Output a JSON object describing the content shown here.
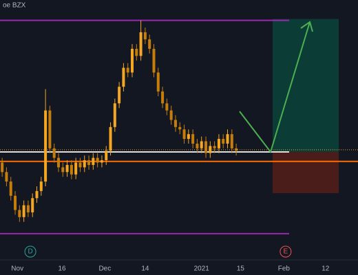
{
  "chart_data": {
    "type": "candlestick",
    "title": "oe BZX",
    "open": [
      40,
      36,
      32,
      26,
      20,
      17,
      22,
      19,
      25,
      28,
      32,
      62,
      46,
      42,
      38,
      36,
      39,
      35,
      40,
      38,
      41,
      39,
      42,
      40,
      41,
      45,
      55,
      65,
      72,
      80,
      78,
      88,
      85,
      95,
      92,
      88,
      78,
      70,
      65,
      62,
      58,
      55,
      54,
      50,
      52,
      48,
      46,
      49,
      44,
      47,
      46,
      50,
      48,
      52,
      46
    ],
    "high": [
      42,
      38,
      34,
      28,
      22,
      24,
      24,
      27,
      30,
      34,
      71,
      64,
      48,
      44,
      40,
      41,
      41,
      42,
      42,
      43,
      43,
      44,
      44,
      43,
      47,
      57,
      67,
      74,
      82,
      82,
      90,
      90,
      100,
      97,
      94,
      90,
      80,
      72,
      67,
      64,
      60,
      57,
      56,
      54,
      54,
      50,
      51,
      51,
      49,
      49,
      52,
      52,
      54,
      54,
      48
    ],
    "low": [
      34,
      30,
      24,
      18,
      15,
      15,
      17,
      17,
      23,
      26,
      30,
      44,
      40,
      36,
      34,
      34,
      33,
      33,
      36,
      36,
      37,
      37,
      38,
      38,
      39,
      43,
      53,
      63,
      70,
      76,
      76,
      83,
      83,
      90,
      86,
      76,
      68,
      63,
      60,
      56,
      53,
      52,
      48,
      48,
      46,
      44,
      44,
      42,
      42,
      44,
      44,
      46,
      46,
      44,
      43
    ],
    "close": [
      36,
      32,
      26,
      20,
      17,
      22,
      19,
      25,
      28,
      32,
      62,
      46,
      42,
      38,
      36,
      39,
      35,
      40,
      38,
      41,
      39,
      42,
      40,
      41,
      45,
      55,
      65,
      72,
      80,
      78,
      88,
      85,
      95,
      92,
      88,
      78,
      70,
      65,
      62,
      58,
      55,
      54,
      50,
      52,
      48,
      46,
      49,
      44,
      47,
      46,
      50,
      48,
      52,
      46,
      45
    ],
    "up_color": "#f5a623",
    "down_color": "#c77d0a",
    "ylim": [
      0,
      108.6
    ],
    "xlim": [
      -0.5,
      82.1
    ],
    "xticks": [
      {
        "value": 3.5,
        "label": "Nov"
      },
      {
        "value": 13.8,
        "label": "16"
      },
      {
        "value": 23.7,
        "label": "Dec"
      },
      {
        "value": 33,
        "label": "14"
      },
      {
        "value": 46,
        "label": "2021"
      },
      {
        "value": 55,
        "label": "15"
      },
      {
        "value": 65,
        "label": "Feb"
      },
      {
        "value": 74.6,
        "label": "12"
      }
    ],
    "levels": [
      {
        "value": 100,
        "color": "#9c27b0",
        "style": "solid"
      },
      {
        "value": 10,
        "color": "#9c27b0",
        "style": "solid"
      },
      {
        "value": 40.5,
        "color": "#ff6d00",
        "style": "solid"
      },
      {
        "value": 45.4,
        "color": "#f5a623",
        "style": "dotted"
      }
    ],
    "position": {
      "entry": 44.5,
      "target": 100.6,
      "stop": 27.1
    },
    "events": [
      {
        "x": 6.5,
        "label": "D",
        "color": "#26a69a"
      },
      {
        "x": 65.4,
        "label": "E",
        "color": "#ef5350"
      }
    ]
  }
}
